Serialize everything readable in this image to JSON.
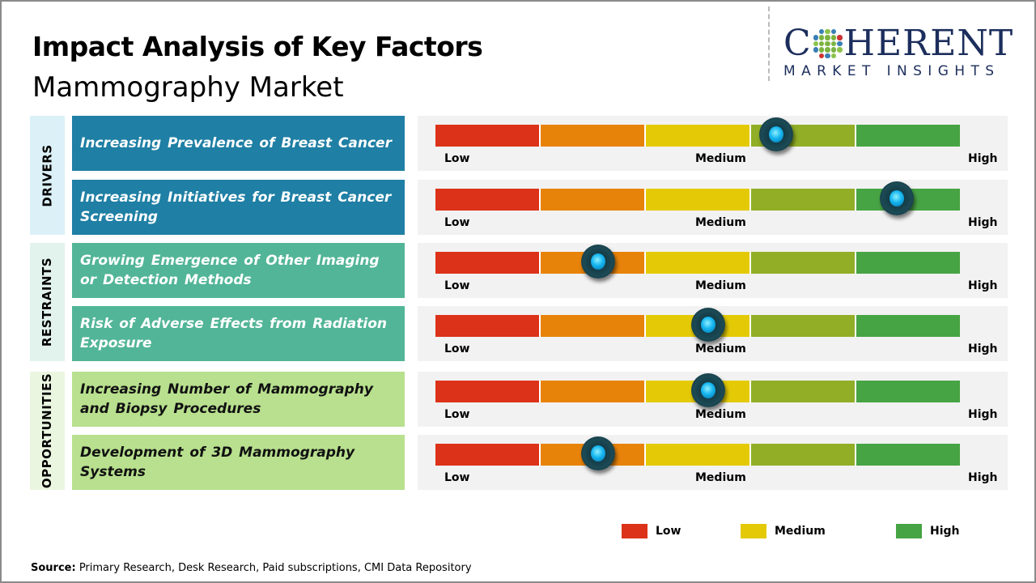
{
  "header": {
    "title": "Impact Analysis of Key Factors",
    "subtitle": "Mammography Market"
  },
  "logo": {
    "line1_left": "C",
    "line1_right": "HERENT",
    "line2": "MARKET INSIGHTS"
  },
  "scale_labels": {
    "low": "Low",
    "medium": "Medium",
    "high": "High"
  },
  "colors": {
    "segments": [
      "#dc3219",
      "#e8830a",
      "#e4ca06",
      "#91ae26",
      "#47a444"
    ]
  },
  "categories": [
    {
      "label": "DRIVERS",
      "bg": "#dcf0f8",
      "box": "#1f7fa4",
      "text": "#ffffff"
    },
    {
      "label": "RESTRAINTS",
      "bg": "#e2f2ec",
      "box": "#52b597",
      "text": "#ffffff"
    },
    {
      "label": "OPPORTUNITIES",
      "bg": "#eaf6e0",
      "box": "#b8e08e",
      "text": "#111111"
    }
  ],
  "chart_data": {
    "type": "gauge",
    "scale": [
      "Low",
      "Medium",
      "High"
    ],
    "factors": [
      {
        "category": "DRIVERS",
        "label": "Increasing Prevalence of Breast Cancer",
        "impact": 0.65
      },
      {
        "category": "DRIVERS",
        "label": "Increasing Initiatives for Breast Cancer Screening",
        "impact": 0.88
      },
      {
        "category": "RESTRAINTS",
        "label": "Growing Emergence of Other Imaging or Detection Methods",
        "impact": 0.31
      },
      {
        "category": "RESTRAINTS",
        "label": "Risk of Adverse Effects from Radiation Exposure",
        "impact": 0.52
      },
      {
        "category": "OPPORTUNITIES",
        "label": "Increasing Number of Mammography and Biopsy Procedures",
        "impact": 0.52
      },
      {
        "category": "OPPORTUNITIES",
        "label": "Development of 3D Mammography Systems",
        "impact": 0.31
      }
    ]
  },
  "legend": [
    {
      "label": "Low",
      "color": "#dc3219"
    },
    {
      "label": "Medium",
      "color": "#e4ca06"
    },
    {
      "label": "High",
      "color": "#47a444"
    }
  ],
  "source": {
    "label": "Source:",
    "text": " Primary Research, Desk Research, Paid subscriptions, CMI Data Repository"
  }
}
